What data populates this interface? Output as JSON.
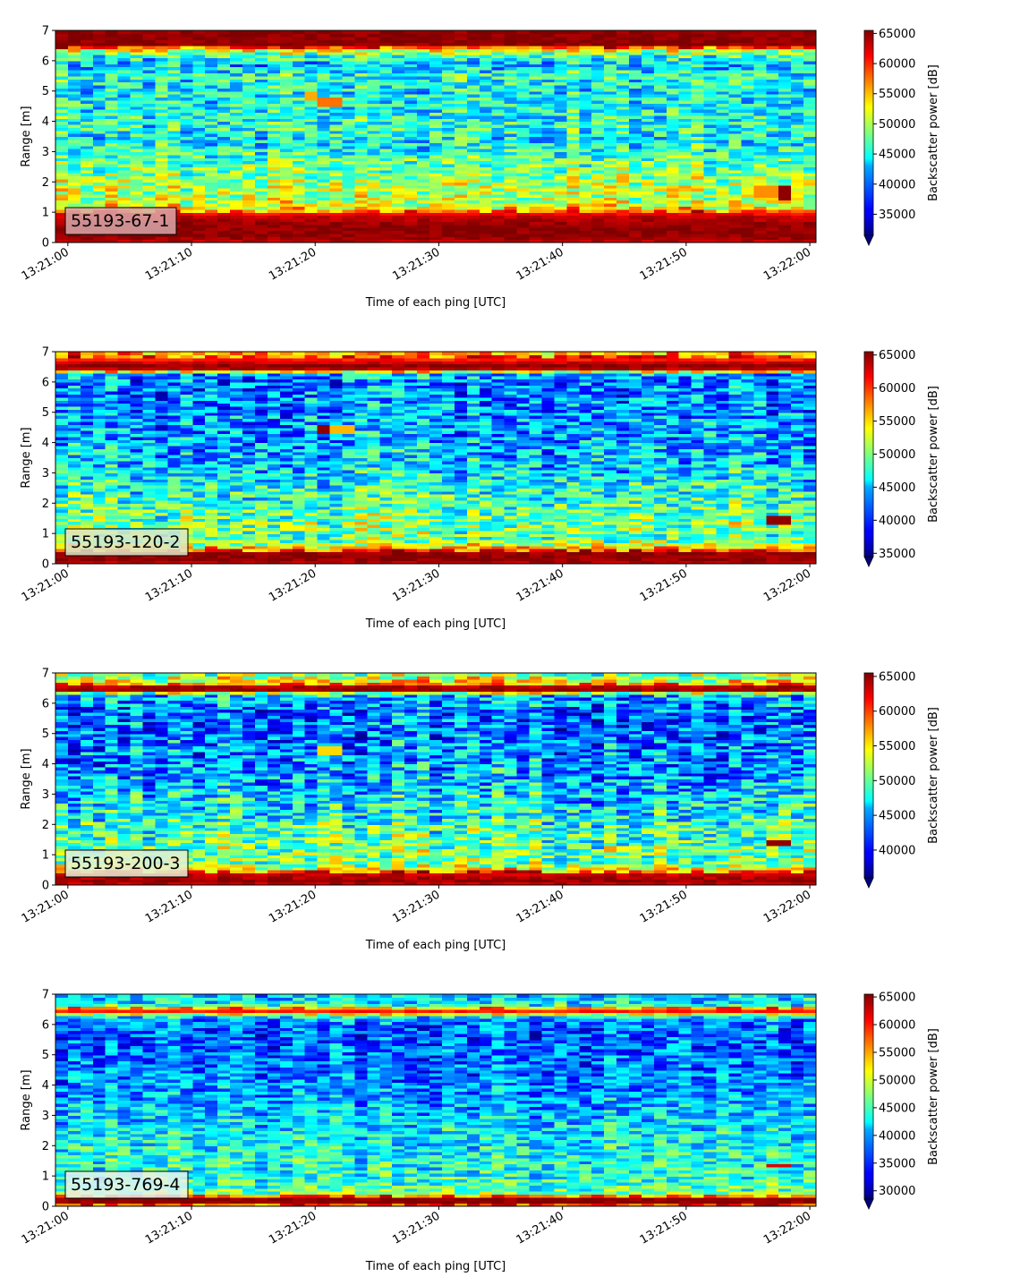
{
  "chart_data": [
    {
      "type": "heatmap",
      "label": "55193-67-1",
      "xlabel": "Time of each ping [UTC]",
      "ylabel": "Range [m]",
      "colorbar_label": "Backscatter power [dB]",
      "x_ticks": [
        "13:21:00",
        "13:21:10",
        "13:21:20",
        "13:21:30",
        "13:21:40",
        "13:21:50",
        "13:22:00"
      ],
      "y_ticks": [
        0,
        1,
        2,
        3,
        4,
        5,
        6,
        7
      ],
      "xlim_seconds": [
        -1,
        60.5
      ],
      "ylim": [
        0,
        7
      ],
      "colorbar_ticks": [
        35000,
        40000,
        45000,
        50000,
        55000,
        60000,
        65000
      ],
      "clim": [
        31500,
        65500
      ],
      "colormap": "jet",
      "label_box_color": "#d8a8aa",
      "profile_range_m": [
        0.0,
        0.2,
        0.3,
        0.6,
        0.9,
        1.0,
        1.15,
        1.3,
        1.6,
        1.9,
        2.2,
        2.6,
        3.0,
        3.4,
        3.8,
        4.3,
        5.0,
        5.5,
        5.9,
        6.1,
        6.4,
        6.5,
        6.6,
        7.0
      ],
      "profile_power_db": [
        63000,
        65000,
        65000,
        65000,
        63000,
        60000,
        54000,
        51000,
        50000,
        50500,
        49000,
        47500,
        46000,
        44000,
        45500,
        44500,
        44000,
        45500,
        42000,
        45000,
        53000,
        65000,
        65000,
        65000
      ],
      "hotspots": [
        {
          "t": 21.0,
          "range": [
            4.55,
            4.85
          ],
          "power_db": 57500
        },
        {
          "t": 19.5,
          "range": [
            4.7,
            5.0
          ],
          "power_db": 55500
        },
        {
          "t": 57.8,
          "range": [
            1.45,
            1.95
          ],
          "power_db": 65000
        },
        {
          "t": 56.5,
          "range": [
            1.55,
            1.85
          ],
          "power_db": 56500
        }
      ]
    },
    {
      "type": "heatmap",
      "label": "55193-120-2",
      "xlabel": "Time of each ping [UTC]",
      "ylabel": "Range [m]",
      "colorbar_label": "Backscatter power [dB]",
      "x_ticks": [
        "13:21:00",
        "13:21:10",
        "13:21:20",
        "13:21:30",
        "13:21:40",
        "13:21:50",
        "13:22:00"
      ],
      "y_ticks": [
        0,
        1,
        2,
        3,
        4,
        5,
        6,
        7
      ],
      "xlim_seconds": [
        -1,
        60.5
      ],
      "ylim": [
        0,
        7
      ],
      "colorbar_ticks": [
        35000,
        40000,
        45000,
        50000,
        55000,
        60000,
        65000
      ],
      "clim": [
        34500,
        65500
      ],
      "colormap": "jet",
      "label_box_color": "#dde8c9",
      "profile_range_m": [
        0.0,
        0.1,
        0.35,
        0.5,
        0.7,
        0.9,
        1.3,
        1.7,
        2.2,
        2.8,
        3.4,
        4.0,
        4.8,
        5.5,
        6.0,
        6.3,
        6.4,
        6.55,
        6.8,
        7.0
      ],
      "profile_power_db": [
        63000,
        65000,
        65000,
        57000,
        50000,
        49000,
        50000,
        49000,
        47500,
        46000,
        44500,
        43500,
        43000,
        42500,
        42000,
        44000,
        63000,
        65000,
        60000,
        56000
      ],
      "hotspots": [
        {
          "t": 21.0,
          "range": [
            4.35,
            4.55
          ],
          "power_db": 65000
        },
        {
          "t": 22.0,
          "range": [
            4.35,
            4.55
          ],
          "power_db": 56000
        },
        {
          "t": 57.5,
          "range": [
            1.3,
            1.55
          ],
          "power_db": 65000
        }
      ]
    },
    {
      "type": "heatmap",
      "label": "55193-200-3",
      "xlabel": "Time of each ping [UTC]",
      "ylabel": "Range [m]",
      "colorbar_label": "Backscatter power [dB]",
      "x_ticks": [
        "13:21:00",
        "13:21:10",
        "13:21:20",
        "13:21:30",
        "13:21:40",
        "13:21:50",
        "13:22:00"
      ],
      "y_ticks": [
        0,
        1,
        2,
        3,
        4,
        5,
        6,
        7
      ],
      "xlim_seconds": [
        -1,
        60.5
      ],
      "ylim": [
        0,
        7
      ],
      "colorbar_ticks": [
        40000,
        45000,
        50000,
        55000,
        60000,
        65000
      ],
      "clim": [
        36000,
        65500
      ],
      "colormap": "jet",
      "label_box_color": "#e6f0d6",
      "profile_range_m": [
        0.0,
        0.15,
        0.4,
        0.5,
        0.7,
        0.9,
        1.3,
        1.8,
        2.3,
        2.9,
        3.5,
        4.2,
        5.0,
        5.8,
        6.3,
        6.45,
        6.55,
        6.7,
        6.85,
        7.0
      ],
      "profile_power_db": [
        63000,
        65000,
        63000,
        56000,
        51000,
        50500,
        50500,
        49500,
        48000,
        46500,
        45000,
        44000,
        43500,
        43000,
        46000,
        65000,
        64000,
        55000,
        53000,
        51000
      ],
      "hotspots": [
        {
          "t": 21.0,
          "range": [
            4.35,
            4.55
          ],
          "power_db": 55500
        },
        {
          "t": 57.5,
          "range": [
            1.3,
            1.5
          ],
          "power_db": 65000
        }
      ]
    },
    {
      "type": "heatmap",
      "label": "55193-769-4",
      "xlabel": "Time of each ping [UTC]",
      "ylabel": "Range [m]",
      "colorbar_label": "Backscatter power [dB]",
      "x_ticks": [
        "13:21:00",
        "13:21:10",
        "13:21:20",
        "13:21:30",
        "13:21:40",
        "13:21:50",
        "13:22:00"
      ],
      "y_ticks": [
        0,
        1,
        2,
        3,
        4,
        5,
        6,
        7
      ],
      "xlim_seconds": [
        -1,
        60.5
      ],
      "ylim": [
        0,
        7
      ],
      "colorbar_ticks": [
        30000,
        35000,
        40000,
        45000,
        50000,
        55000,
        60000,
        65000
      ],
      "clim": [
        28500,
        65500
      ],
      "colormap": "jet",
      "label_box_color": "#e6f2ef",
      "profile_range_m": [
        0.0,
        0.1,
        0.3,
        0.4,
        0.6,
        0.9,
        1.3,
        1.8,
        2.4,
        3.0,
        3.6,
        4.3,
        5.0,
        5.7,
        6.2,
        6.35,
        6.5,
        6.6,
        6.75,
        7.0
      ],
      "profile_power_db": [
        54000,
        65000,
        65000,
        48000,
        45000,
        44000,
        43500,
        43000,
        42000,
        40500,
        39000,
        38000,
        37000,
        36500,
        38000,
        50000,
        65000,
        45000,
        42000,
        41000
      ],
      "hotspots": [
        {
          "t": 57.5,
          "range": [
            1.3,
            1.45
          ],
          "power_db": 62000
        }
      ]
    }
  ]
}
